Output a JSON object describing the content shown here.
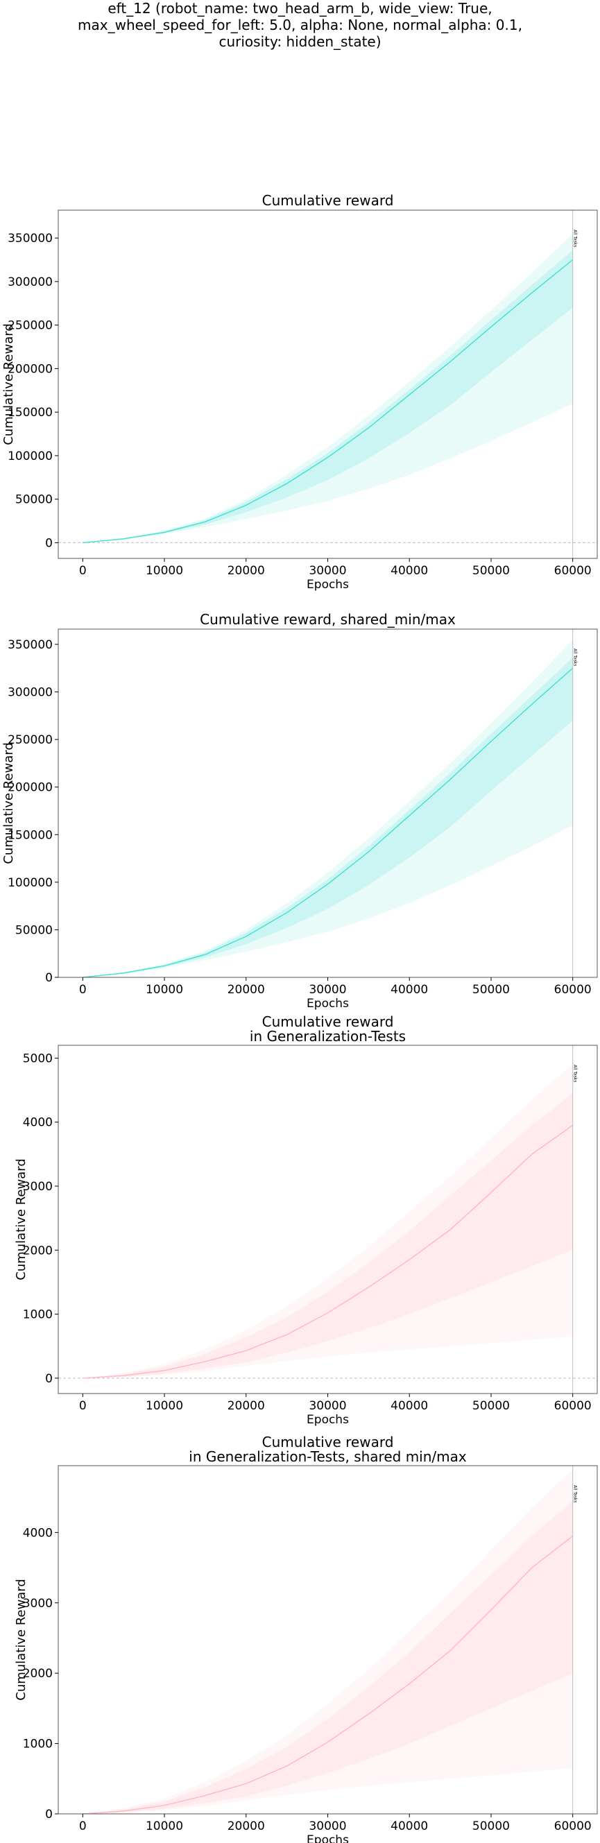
{
  "suptitle": [
    "eft_12 (robot_name: two_head_arm_b, wide_view: True,",
    "max_wheel_speed_for_left: 5.0, alpha: None, normal_alpha: 0.1,",
    "curiosity: hidden_state)"
  ],
  "chart_data": [
    {
      "type": "line",
      "title": [
        "Cumulative reward"
      ],
      "xlabel": "Epochs",
      "ylabel": "Cumulative Reward",
      "xlim": [
        -3000,
        63000
      ],
      "ylim": [
        -18000,
        382000
      ],
      "xticks": [
        0,
        10000,
        20000,
        30000,
        40000,
        50000,
        60000
      ],
      "yticks": [
        0,
        50000,
        100000,
        150000,
        200000,
        250000,
        300000,
        350000
      ],
      "zero_line": true,
      "color": "#40e0d0",
      "vline": {
        "x": 60000,
        "label": "All Tasks"
      },
      "x": [
        0,
        5000,
        10000,
        15000,
        20000,
        25000,
        30000,
        35000,
        40000,
        45000,
        50000,
        55000,
        60000
      ],
      "mean": [
        0,
        4500,
        12000,
        24000,
        43000,
        68000,
        98000,
        132000,
        170000,
        208000,
        248000,
        287000,
        325000
      ],
      "inner_low": [
        0,
        4000,
        11000,
        21000,
        35000,
        52000,
        72000,
        97000,
        126000,
        158000,
        196000,
        233000,
        270000
      ],
      "inner_high": [
        0,
        5000,
        13000,
        26000,
        47000,
        73000,
        103000,
        138000,
        176000,
        215000,
        256000,
        296000,
        336000
      ],
      "outer_low": [
        0,
        3500,
        10000,
        18000,
        27000,
        37000,
        48000,
        62000,
        78000,
        97000,
        117000,
        138000,
        160000
      ],
      "outer_high": [
        0,
        5500,
        14000,
        28000,
        50000,
        78000,
        110000,
        146000,
        185000,
        225000,
        267000,
        310000,
        355000
      ]
    },
    {
      "type": "line",
      "title": [
        "Cumulative reward, shared_min/max"
      ],
      "xlabel": "Epochs",
      "ylabel": "Cumulative Reward",
      "xlim": [
        -3000,
        63000
      ],
      "ylim": [
        0,
        366000
      ],
      "xticks": [
        0,
        10000,
        20000,
        30000,
        40000,
        50000,
        60000
      ],
      "yticks": [
        0,
        50000,
        100000,
        150000,
        200000,
        250000,
        300000,
        350000
      ],
      "zero_line": false,
      "color": "#40e0d0",
      "vline": {
        "x": 60000,
        "label": "All Tasks"
      },
      "x": [
        0,
        5000,
        10000,
        15000,
        20000,
        25000,
        30000,
        35000,
        40000,
        45000,
        50000,
        55000,
        60000
      ],
      "mean": [
        0,
        4500,
        12000,
        24000,
        43000,
        68000,
        98000,
        132000,
        170000,
        208000,
        248000,
        287000,
        325000
      ],
      "inner_low": [
        0,
        4000,
        11000,
        21000,
        35000,
        52000,
        72000,
        97000,
        126000,
        158000,
        196000,
        233000,
        270000
      ],
      "inner_high": [
        0,
        5000,
        13000,
        26000,
        47000,
        73000,
        103000,
        138000,
        176000,
        215000,
        256000,
        296000,
        336000
      ],
      "outer_low": [
        0,
        3500,
        10000,
        18000,
        27000,
        37000,
        48000,
        62000,
        78000,
        97000,
        117000,
        138000,
        160000
      ],
      "outer_high": [
        0,
        5500,
        14000,
        28000,
        50000,
        78000,
        110000,
        146000,
        185000,
        225000,
        267000,
        310000,
        355000
      ]
    },
    {
      "type": "line",
      "title": [
        "Cumulative reward",
        "in Generalization-Tests"
      ],
      "xlabel": "Epochs",
      "ylabel": "Cumulative Reward",
      "xlim": [
        -3000,
        63000
      ],
      "ylim": [
        -240,
        5200
      ],
      "xticks": [
        0,
        10000,
        20000,
        30000,
        40000,
        50000,
        60000
      ],
      "yticks": [
        0,
        1000,
        2000,
        3000,
        4000,
        5000
      ],
      "zero_line": true,
      "color": "#ffb6c1",
      "vline": {
        "x": 60000,
        "label": "All Tasks"
      },
      "x": [
        0,
        5000,
        10000,
        15000,
        20000,
        25000,
        30000,
        35000,
        40000,
        45000,
        50000,
        55000,
        60000
      ],
      "mean": [
        0,
        40,
        120,
        260,
        430,
        680,
        1020,
        1420,
        1850,
        2320,
        2900,
        3500,
        3950
      ],
      "inner_low": [
        0,
        20,
        70,
        150,
        250,
        400,
        580,
        780,
        1000,
        1250,
        1500,
        1750,
        2000
      ],
      "inner_high": [
        0,
        60,
        180,
        380,
        640,
        950,
        1350,
        1800,
        2300,
        2850,
        3400,
        3950,
        4450
      ],
      "outer_low": [
        0,
        15,
        50,
        110,
        190,
        270,
        340,
        400,
        450,
        500,
        550,
        600,
        650
      ],
      "outer_high": [
        0,
        80,
        220,
        450,
        750,
        1120,
        1560,
        2050,
        2600,
        3150,
        3750,
        4350,
        4900
      ]
    },
    {
      "type": "line",
      "title": [
        "Cumulative reward",
        "in Generalization-Tests, shared min/max"
      ],
      "xlabel": "Epochs",
      "ylabel": "Cumulative Reward",
      "xlim": [
        -3000,
        63000
      ],
      "ylim": [
        0,
        4950
      ],
      "xticks": [
        0,
        10000,
        20000,
        30000,
        40000,
        50000,
        60000
      ],
      "yticks": [
        0,
        1000,
        2000,
        3000,
        4000
      ],
      "zero_line": false,
      "color": "#ffb6c1",
      "vline": {
        "x": 60000,
        "label": "All Tasks"
      },
      "x": [
        0,
        5000,
        10000,
        15000,
        20000,
        25000,
        30000,
        35000,
        40000,
        45000,
        50000,
        55000,
        60000
      ],
      "mean": [
        0,
        40,
        120,
        260,
        430,
        680,
        1020,
        1420,
        1850,
        2320,
        2900,
        3500,
        3950
      ],
      "inner_low": [
        0,
        20,
        70,
        150,
        250,
        400,
        580,
        780,
        1000,
        1250,
        1500,
        1750,
        2000
      ],
      "inner_high": [
        0,
        60,
        180,
        380,
        640,
        950,
        1350,
        1800,
        2300,
        2850,
        3400,
        3950,
        4450
      ],
      "outer_low": [
        0,
        15,
        50,
        110,
        190,
        270,
        340,
        400,
        450,
        500,
        550,
        600,
        650
      ],
      "outer_high": [
        0,
        80,
        220,
        450,
        750,
        1120,
        1560,
        2050,
        2600,
        3150,
        3750,
        4350,
        4900
      ]
    }
  ]
}
